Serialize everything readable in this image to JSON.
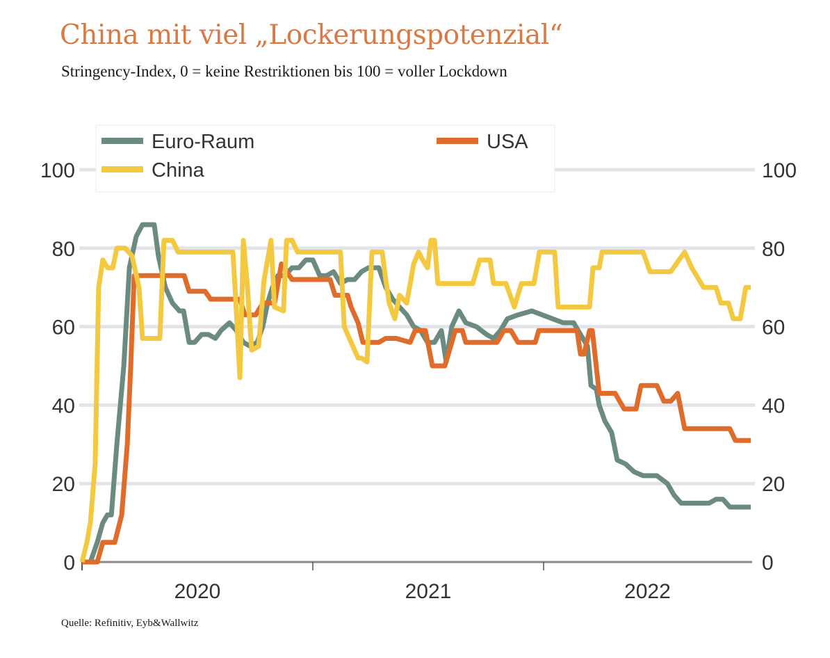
{
  "header": {
    "title": "China mit viel „Lockerungspotenzial“",
    "subtitle": "Stringency-Index, 0 = keine Restriktionen bis 100 = voller Lockdown"
  },
  "footer": {
    "source": "Quelle: Refinitiv, Eyb&Wallwitz"
  },
  "chart_data": {
    "type": "line",
    "title": "China mit viel „Lockerungspotenzial“",
    "subtitle": "Stringency-Index, 0 = keine Restriktionen bis 100 = voller Lockdown",
    "xlabel": "",
    "ylabel": "",
    "x_unit": "years since 2020-01-01",
    "xlim": [
      0,
      2.9
    ],
    "ylim": [
      0,
      100
    ],
    "y_ticks": [
      0,
      20,
      40,
      60,
      80,
      100
    ],
    "y_tick_labels": [
      "0",
      "20",
      "40",
      "60",
      "80",
      "100"
    ],
    "y_axis_sides": [
      "left",
      "right"
    ],
    "x_tick_positions": [
      0,
      1,
      2
    ],
    "x_labels": [
      {
        "label": "2020",
        "at": 0.5
      },
      {
        "label": "2021",
        "at": 1.5
      },
      {
        "label": "2022",
        "at": 2.45
      }
    ],
    "grid": true,
    "legend_position": "top-left",
    "series": [
      {
        "name": "Euro-Raum",
        "color": "#6b8a80",
        "points": [
          [
            0,
            0
          ],
          [
            0.036,
            0
          ],
          [
            0.066,
            5
          ],
          [
            0.09,
            10
          ],
          [
            0.11,
            12
          ],
          [
            0.127,
            12
          ],
          [
            0.151,
            30
          ],
          [
            0.181,
            50
          ],
          [
            0.205,
            75
          ],
          [
            0.235,
            83
          ],
          [
            0.262,
            86
          ],
          [
            0.313,
            86
          ],
          [
            0.331,
            78
          ],
          [
            0.361,
            70
          ],
          [
            0.392,
            66
          ],
          [
            0.422,
            64
          ],
          [
            0.44,
            64
          ],
          [
            0.464,
            56
          ],
          [
            0.488,
            56
          ],
          [
            0.518,
            58
          ],
          [
            0.548,
            58
          ],
          [
            0.578,
            57
          ],
          [
            0.602,
            59
          ],
          [
            0.639,
            61
          ],
          [
            0.669,
            59
          ],
          [
            0.699,
            56
          ],
          [
            0.729,
            55
          ],
          [
            0.759,
            56
          ],
          [
            0.783,
            60
          ],
          [
            0.804,
            66
          ],
          [
            0.825,
            70
          ],
          [
            0.849,
            73
          ],
          [
            0.879,
            73
          ],
          [
            0.91,
            75
          ],
          [
            0.94,
            75
          ],
          [
            0.97,
            77
          ],
          [
            1.0,
            77
          ],
          [
            1.03,
            73
          ],
          [
            1.06,
            73
          ],
          [
            1.09,
            74
          ],
          [
            1.12,
            71
          ],
          [
            1.15,
            72
          ],
          [
            1.181,
            72
          ],
          [
            1.211,
            74
          ],
          [
            1.241,
            75
          ],
          [
            1.286,
            75
          ],
          [
            1.316,
            70
          ],
          [
            1.346,
            67
          ],
          [
            1.376,
            65
          ],
          [
            1.407,
            63
          ],
          [
            1.437,
            60
          ],
          [
            1.467,
            59
          ],
          [
            1.497,
            56
          ],
          [
            1.527,
            56
          ],
          [
            1.557,
            59
          ],
          [
            1.578,
            51
          ],
          [
            1.602,
            60
          ],
          [
            1.633,
            64
          ],
          [
            1.663,
            61
          ],
          [
            1.708,
            60
          ],
          [
            1.753,
            58
          ],
          [
            1.783,
            57
          ],
          [
            1.813,
            59
          ],
          [
            1.843,
            62
          ],
          [
            1.889,
            63
          ],
          [
            1.949,
            64
          ],
          [
            1.994,
            63
          ],
          [
            2.039,
            62
          ],
          [
            2.084,
            61
          ],
          [
            2.13,
            61
          ],
          [
            2.16,
            58
          ],
          [
            2.19,
            55
          ],
          [
            2.205,
            45
          ],
          [
            2.229,
            44
          ],
          [
            2.241,
            40
          ],
          [
            2.265,
            36
          ],
          [
            2.295,
            33
          ],
          [
            2.319,
            26
          ],
          [
            2.355,
            25
          ],
          [
            2.392,
            23
          ],
          [
            2.431,
            22
          ],
          [
            2.491,
            22
          ],
          [
            2.536,
            20
          ],
          [
            2.566,
            17
          ],
          [
            2.596,
            15
          ],
          [
            2.627,
            15
          ],
          [
            2.657,
            15
          ],
          [
            2.687,
            15
          ],
          [
            2.717,
            15
          ],
          [
            2.747,
            16
          ],
          [
            2.777,
            16
          ],
          [
            2.807,
            14
          ],
          [
            2.837,
            14
          ],
          [
            2.898,
            14
          ]
        ]
      },
      {
        "name": "USA",
        "color": "#e06c2c",
        "points": [
          [
            0,
            0
          ],
          [
            0.066,
            0
          ],
          [
            0.09,
            5
          ],
          [
            0.142,
            5
          ],
          [
            0.172,
            12
          ],
          [
            0.196,
            30
          ],
          [
            0.211,
            50
          ],
          [
            0.226,
            73
          ],
          [
            0.247,
            73
          ],
          [
            0.443,
            73
          ],
          [
            0.464,
            69
          ],
          [
            0.533,
            69
          ],
          [
            0.557,
            67
          ],
          [
            0.684,
            67
          ],
          [
            0.705,
            63
          ],
          [
            0.753,
            63
          ],
          [
            0.783,
            66
          ],
          [
            0.834,
            66
          ],
          [
            0.864,
            76
          ],
          [
            0.91,
            72
          ],
          [
            1.075,
            72
          ],
          [
            1.096,
            68
          ],
          [
            1.151,
            68
          ],
          [
            1.166,
            65
          ],
          [
            1.196,
            61
          ],
          [
            1.217,
            56
          ],
          [
            1.286,
            56
          ],
          [
            1.316,
            57
          ],
          [
            1.361,
            57
          ],
          [
            1.422,
            56
          ],
          [
            1.443,
            59
          ],
          [
            1.488,
            59
          ],
          [
            1.518,
            50
          ],
          [
            1.572,
            50
          ],
          [
            1.602,
            56
          ],
          [
            1.617,
            59
          ],
          [
            1.648,
            59
          ],
          [
            1.663,
            56
          ],
          [
            1.798,
            56
          ],
          [
            1.828,
            59
          ],
          [
            1.858,
            59
          ],
          [
            1.889,
            56
          ],
          [
            1.964,
            56
          ],
          [
            1.979,
            59
          ],
          [
            2.145,
            59
          ],
          [
            2.16,
            53
          ],
          [
            2.175,
            53
          ],
          [
            2.199,
            59
          ],
          [
            2.211,
            59
          ],
          [
            2.241,
            43
          ],
          [
            2.31,
            43
          ],
          [
            2.349,
            39
          ],
          [
            2.401,
            39
          ],
          [
            2.422,
            45
          ],
          [
            2.491,
            45
          ],
          [
            2.521,
            41
          ],
          [
            2.551,
            41
          ],
          [
            2.581,
            43
          ],
          [
            2.611,
            34
          ],
          [
            2.807,
            34
          ],
          [
            2.831,
            31
          ],
          [
            2.898,
            31
          ]
        ]
      },
      {
        "name": "China",
        "color": "#f2c940",
        "points": [
          [
            0,
            0
          ],
          [
            0.021,
            5
          ],
          [
            0.036,
            10
          ],
          [
            0.057,
            25
          ],
          [
            0.072,
            70
          ],
          [
            0.09,
            77
          ],
          [
            0.111,
            75
          ],
          [
            0.133,
            75
          ],
          [
            0.151,
            80
          ],
          [
            0.187,
            80
          ],
          [
            0.217,
            78
          ],
          [
            0.247,
            70
          ],
          [
            0.262,
            57
          ],
          [
            0.337,
            57
          ],
          [
            0.355,
            82
          ],
          [
            0.392,
            82
          ],
          [
            0.416,
            79
          ],
          [
            0.654,
            79
          ],
          [
            0.663,
            70
          ],
          [
            0.684,
            47
          ],
          [
            0.699,
            82
          ],
          [
            0.717,
            70
          ],
          [
            0.735,
            54
          ],
          [
            0.765,
            55
          ],
          [
            0.789,
            72
          ],
          [
            0.819,
            82
          ],
          [
            0.834,
            65
          ],
          [
            0.873,
            64
          ],
          [
            0.886,
            82
          ],
          [
            0.91,
            82
          ],
          [
            0.934,
            79
          ],
          [
            1.12,
            79
          ],
          [
            1.136,
            60
          ],
          [
            1.166,
            56
          ],
          [
            1.196,
            52
          ],
          [
            1.211,
            52
          ],
          [
            1.235,
            51
          ],
          [
            1.256,
            79
          ],
          [
            1.301,
            79
          ],
          [
            1.316,
            72
          ],
          [
            1.331,
            66
          ],
          [
            1.355,
            62
          ],
          [
            1.376,
            68
          ],
          [
            1.407,
            66
          ],
          [
            1.437,
            76
          ],
          [
            1.458,
            79
          ],
          [
            1.476,
            77
          ],
          [
            1.497,
            75
          ],
          [
            1.512,
            82
          ],
          [
            1.527,
            82
          ],
          [
            1.542,
            71
          ],
          [
            1.693,
            71
          ],
          [
            1.723,
            77
          ],
          [
            1.768,
            77
          ],
          [
            1.783,
            71
          ],
          [
            1.837,
            71
          ],
          [
            1.873,
            65
          ],
          [
            1.904,
            71
          ],
          [
            1.958,
            71
          ],
          [
            1.982,
            79
          ],
          [
            2.048,
            79
          ],
          [
            2.063,
            65
          ],
          [
            2.199,
            65
          ],
          [
            2.214,
            75
          ],
          [
            2.241,
            75
          ],
          [
            2.253,
            79
          ],
          [
            2.431,
            79
          ],
          [
            2.461,
            74
          ],
          [
            2.551,
            74
          ],
          [
            2.611,
            79
          ],
          [
            2.642,
            75
          ],
          [
            2.693,
            70
          ],
          [
            2.747,
            70
          ],
          [
            2.768,
            66
          ],
          [
            2.801,
            66
          ],
          [
            2.822,
            62
          ],
          [
            2.852,
            62
          ],
          [
            2.876,
            70
          ],
          [
            2.898,
            70
          ]
        ]
      }
    ]
  }
}
